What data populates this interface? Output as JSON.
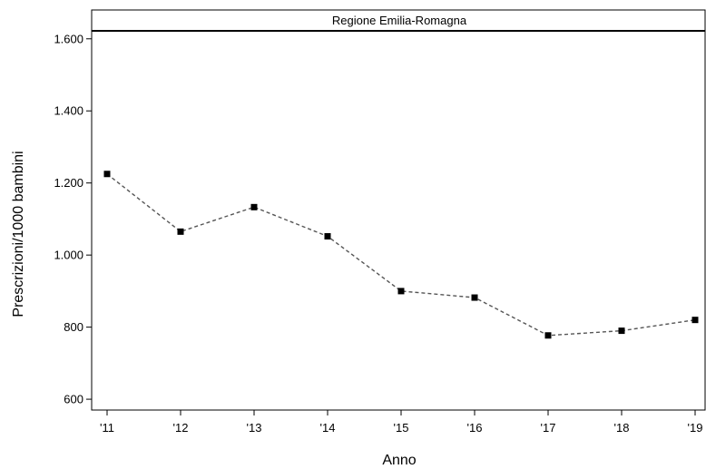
{
  "chart_data": {
    "type": "line",
    "title": "Regione Emilia-Romagna",
    "xlabel": "Anno",
    "ylabel": "Prescrizioni/1000 bambini",
    "categories": [
      "'11",
      "'12",
      "'13",
      "'14",
      "'15",
      "'16",
      "'17",
      "'18",
      "'19"
    ],
    "series": [
      {
        "values": [
          1225,
          1065,
          1133,
          1052,
          900,
          882,
          777,
          790,
          820
        ]
      }
    ],
    "ylim": [
      570,
      1680
    ],
    "yticks": [
      600,
      800,
      1000,
      1200,
      1400,
      1600
    ],
    "ytick_labels": [
      "600",
      "800",
      "1.000",
      "1.200",
      "1.400",
      "1.600"
    ],
    "grid": false,
    "line_style": "dashed",
    "marker": "square",
    "colors": {
      "line": "#555555",
      "marker": "#000000",
      "axis": "#000000"
    }
  }
}
